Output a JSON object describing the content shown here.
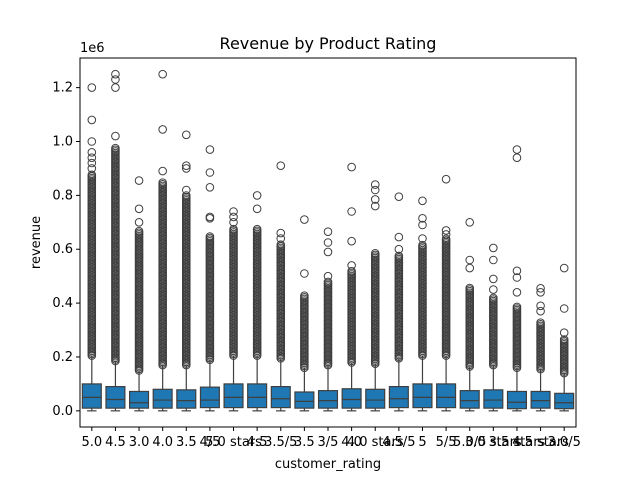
{
  "chart_data": {
    "type": "box",
    "title": "Revenue by Product Rating",
    "xlabel": "customer_rating",
    "ylabel": "revenue",
    "y_offset_label": "1e6",
    "y_scale_multiplier": 1000000,
    "ylim": [
      -60000,
      1310000
    ],
    "y_ticks": [
      0,
      200000,
      400000,
      600000,
      800000,
      1000000,
      1200000
    ],
    "y_tick_labels": [
      "0.0",
      "0.2",
      "0.4",
      "0.6",
      "0.8",
      "1.0",
      "1.2"
    ],
    "categories": [
      "5.0",
      "4.5",
      "3.0",
      "4.0",
      "3.5",
      "4/5",
      "5.0 stars",
      "4.5",
      "3.5/5",
      "3.5",
      "3/5",
      "4.0",
      "4.0 stars",
      "4.5/5",
      "5",
      "5/5",
      "5.0/5",
      "3.0 stars",
      "3.5 stars",
      "4.5 stars",
      "3.0/5"
    ],
    "color": "#1f77b4",
    "boxes": [
      {
        "q1": 10000,
        "median": 50000,
        "q3": 100000,
        "whisker_low": 0,
        "whisker_high": 205000,
        "outliers_dense_range": [
          205000,
          880000
        ],
        "outliers": [
          900000,
          920000,
          940000,
          960000,
          1000000,
          1080000,
          1200000
        ]
      },
      {
        "q1": 10000,
        "median": 42000,
        "q3": 90000,
        "whisker_low": 0,
        "whisker_high": 185000,
        "outliers_dense_range": [
          185000,
          980000
        ],
        "outliers": [
          1020000,
          1200000,
          1230000,
          1250000
        ]
      },
      {
        "q1": 10000,
        "median": 30000,
        "q3": 72000,
        "whisker_low": 0,
        "whisker_high": 150000,
        "outliers_dense_range": [
          150000,
          670000
        ],
        "outliers": [
          700000,
          750000,
          855000
        ]
      },
      {
        "q1": 10000,
        "median": 40000,
        "q3": 80000,
        "whisker_low": 0,
        "whisker_high": 170000,
        "outliers_dense_range": [
          170000,
          850000
        ],
        "outliers": [
          890000,
          1045000,
          1250000
        ]
      },
      {
        "q1": 10000,
        "median": 38000,
        "q3": 78000,
        "whisker_low": 0,
        "whisker_high": 170000,
        "outliers_dense_range": [
          170000,
          800000
        ],
        "outliers": [
          820000,
          900000,
          910000,
          1025000
        ]
      },
      {
        "q1": 12000,
        "median": 40000,
        "q3": 88000,
        "whisker_low": 0,
        "whisker_high": 190000,
        "outliers_dense_range": [
          190000,
          650000
        ],
        "outliers": [
          715000,
          720000,
          830000,
          885000,
          970000
        ]
      },
      {
        "q1": 12000,
        "median": 50000,
        "q3": 100000,
        "whisker_low": 0,
        "whisker_high": 205000,
        "outliers_dense_range": [
          205000,
          680000
        ],
        "outliers": [
          700000,
          720000,
          740000
        ]
      },
      {
        "q1": 12000,
        "median": 50000,
        "q3": 100000,
        "whisker_low": 0,
        "whisker_high": 205000,
        "outliers_dense_range": [
          205000,
          680000
        ],
        "outliers": [
          750000,
          800000
        ]
      },
      {
        "q1": 12000,
        "median": 45000,
        "q3": 90000,
        "whisker_low": 0,
        "whisker_high": 195000,
        "outliers_dense_range": [
          195000,
          620000
        ],
        "outliers": [
          640000,
          660000,
          910000
        ]
      },
      {
        "q1": 10000,
        "median": 35000,
        "q3": 70000,
        "whisker_low": 0,
        "whisker_high": 160000,
        "outliers_dense_range": [
          160000,
          430000
        ],
        "outliers": [
          510000,
          710000
        ]
      },
      {
        "q1": 10000,
        "median": 38000,
        "q3": 75000,
        "whisker_low": 0,
        "whisker_high": 170000,
        "outliers_dense_range": [
          170000,
          480000
        ],
        "outliers": [
          500000,
          590000,
          625000,
          665000
        ]
      },
      {
        "q1": 10000,
        "median": 42000,
        "q3": 82000,
        "whisker_low": 0,
        "whisker_high": 180000,
        "outliers_dense_range": [
          180000,
          520000
        ],
        "outliers": [
          540000,
          630000,
          740000,
          905000
        ]
      },
      {
        "q1": 10000,
        "median": 40000,
        "q3": 80000,
        "whisker_low": 0,
        "whisker_high": 175000,
        "outliers_dense_range": [
          175000,
          590000
        ],
        "outliers": [
          760000,
          785000,
          820000,
          840000
        ]
      },
      {
        "q1": 12000,
        "median": 45000,
        "q3": 90000,
        "whisker_low": 0,
        "whisker_high": 195000,
        "outliers_dense_range": [
          195000,
          580000
        ],
        "outliers": [
          600000,
          645000,
          795000
        ]
      },
      {
        "q1": 12000,
        "median": 50000,
        "q3": 100000,
        "whisker_low": 0,
        "whisker_high": 205000,
        "outliers_dense_range": [
          205000,
          620000
        ],
        "outliers": [
          640000,
          690000,
          715000,
          780000
        ]
      },
      {
        "q1": 12000,
        "median": 50000,
        "q3": 100000,
        "whisker_low": 0,
        "whisker_high": 205000,
        "outliers_dense_range": [
          205000,
          640000
        ],
        "outliers": [
          655000,
          670000,
          860000
        ]
      },
      {
        "q1": 10000,
        "median": 38000,
        "q3": 75000,
        "whisker_low": 0,
        "whisker_high": 165000,
        "outliers_dense_range": [
          165000,
          460000
        ],
        "outliers": [
          530000,
          560000,
          700000
        ]
      },
      {
        "q1": 10000,
        "median": 40000,
        "q3": 78000,
        "whisker_low": 0,
        "whisker_high": 170000,
        "outliers_dense_range": [
          170000,
          420000
        ],
        "outliers": [
          450000,
          490000,
          560000,
          605000
        ]
      },
      {
        "q1": 8000,
        "median": 32000,
        "q3": 72000,
        "whisker_low": 0,
        "whisker_high": 160000,
        "outliers_dense_range": [
          160000,
          390000
        ],
        "outliers": [
          440000,
          495000,
          520000,
          940000,
          970000
        ]
      },
      {
        "q1": 10000,
        "median": 38000,
        "q3": 72000,
        "whisker_low": 0,
        "whisker_high": 155000,
        "outliers_dense_range": [
          155000,
          330000
        ],
        "outliers": [
          370000,
          390000,
          440000,
          455000
        ]
      },
      {
        "q1": 8000,
        "median": 30000,
        "q3": 65000,
        "whisker_low": 0,
        "whisker_high": 140000,
        "outliers_dense_range": [
          140000,
          270000
        ],
        "outliers": [
          290000,
          380000,
          530000
        ]
      }
    ]
  }
}
